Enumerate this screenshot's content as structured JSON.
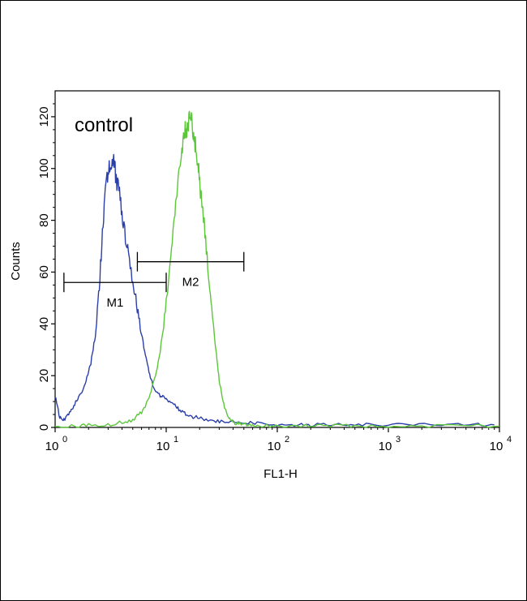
{
  "chart_data": {
    "type": "line",
    "title": "",
    "xlabel": "FL1-H",
    "ylabel": "Counts",
    "x_scale": "log",
    "xlim": [
      1,
      10000
    ],
    "ylim": [
      0,
      130
    ],
    "x_ticks": [
      {
        "value": 1,
        "base": "10",
        "exp": "0"
      },
      {
        "value": 10,
        "base": "10",
        "exp": "1"
      },
      {
        "value": 100,
        "base": "10",
        "exp": "2"
      },
      {
        "value": 1000,
        "base": "10",
        "exp": "3"
      },
      {
        "value": 10000,
        "base": "10",
        "exp": "4"
      }
    ],
    "y_ticks": [
      0,
      20,
      40,
      60,
      80,
      100,
      120
    ],
    "annotation": "control",
    "series": [
      {
        "color": "#2b3fa8",
        "x": [
          1.0,
          1.1,
          1.2,
          1.35,
          1.5,
          1.7,
          1.9,
          2.1,
          2.3,
          2.5,
          2.7,
          2.9,
          3.1,
          3.3,
          3.5,
          3.8,
          4.1,
          4.5,
          5.0,
          5.5,
          6.0,
          6.6,
          7.2,
          8.0,
          9.0,
          10.0,
          11.5,
          13,
          15,
          18,
          22,
          28,
          35,
          45,
          60,
          80,
          110,
          150,
          200,
          300,
          500,
          800,
          1500,
          3000,
          6000,
          9000
        ],
        "y": [
          12,
          4,
          3,
          6,
          9,
          13,
          18,
          25,
          35,
          55,
          78,
          95,
          102,
          104,
          98,
          90,
          80,
          68,
          57,
          46,
          36,
          26,
          19,
          14,
          12,
          11,
          9,
          7,
          5,
          4,
          3,
          2.5,
          2,
          2,
          1.5,
          1.5,
          1,
          1,
          1,
          1,
          1,
          1,
          1,
          1,
          1,
          1
        ]
      },
      {
        "color": "#5cc63a",
        "x": [
          1.0,
          1.5,
          2.0,
          3.0,
          4.0,
          5.0,
          6.0,
          7.0,
          8.0,
          9.0,
          10,
          11,
          12,
          13,
          14,
          15,
          16,
          17,
          18,
          19,
          20,
          22,
          24,
          26,
          28,
          30,
          33,
          36,
          40,
          45,
          50,
          60,
          80,
          100,
          150,
          200,
          300,
          500,
          1000,
          2000,
          5000,
          10000
        ],
        "y": [
          0,
          0.5,
          1,
          1,
          2,
          3,
          6,
          11,
          20,
          32,
          48,
          65,
          82,
          96,
          108,
          115,
          118,
          117,
          112,
          104,
          95,
          78,
          60,
          43,
          30,
          18,
          9,
          4,
          2,
          1.5,
          1,
          1,
          0.5,
          0.5,
          0.5,
          0.5,
          0.5,
          0.5,
          0.5,
          0.5,
          0.5,
          0.5
        ]
      }
    ],
    "markers": [
      {
        "label": "M1",
        "x_start": 1.2,
        "x_end": 10,
        "y": 56
      },
      {
        "label": "M2",
        "x_start": 5.5,
        "x_end": 50,
        "y": 64
      }
    ]
  }
}
